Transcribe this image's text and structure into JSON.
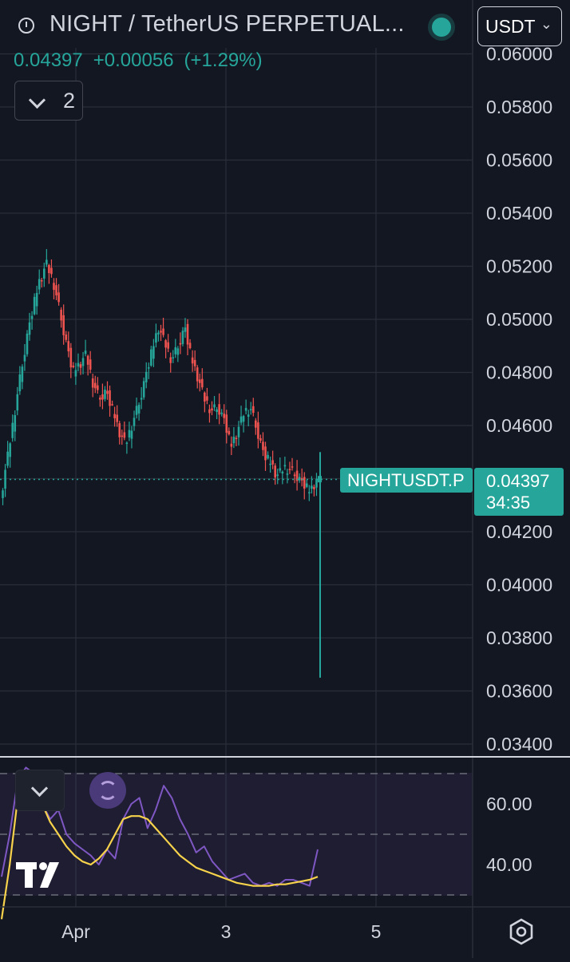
{
  "header": {
    "symbol_title": "NIGHT / TetherUS PERPETUAL...",
    "currency_button": "USDT",
    "price": "0.04397",
    "change": "+0.00056",
    "change_pct": "(+1.29%)",
    "indicator_count": "2"
  },
  "colors": {
    "bg": "#131722",
    "up": "#26a69a",
    "down": "#ef5350",
    "grid": "#2a2e39",
    "text": "#d1d4dc",
    "rsi": "#7e57c2",
    "rsi_ma": "#f7d24b"
  },
  "icons": [
    "clock-icon",
    "live-dot-icon",
    "chevron-down-icon",
    "sync-icon",
    "tradingview-logo-icon",
    "settings-icon"
  ],
  "chart_data": {
    "type": "candlestick",
    "title": "NIGHT / TetherUS PERPETUAL...",
    "price_axis": {
      "ticks": [
        "0.06000",
        "0.05800",
        "0.05600",
        "0.05400",
        "0.05200",
        "0.05000",
        "0.04800",
        "0.04600",
        "0.04400",
        "0.04200",
        "0.04000",
        "0.03800",
        "0.03600",
        "0.03400"
      ],
      "range": [
        0.0336,
        0.0602
      ]
    },
    "time_axis": {
      "ticks": [
        "Apr",
        "3",
        "5"
      ]
    },
    "last_price": {
      "symbol": "NIGHTUSDT.P",
      "value": "0.04397",
      "countdown": "34:35"
    },
    "price_path": [
      0.0432,
      0.0447,
      0.0462,
      0.0478,
      0.0493,
      0.0505,
      0.0515,
      0.0521,
      0.0514,
      0.0503,
      0.0491,
      0.048,
      0.0483,
      0.0487,
      0.0476,
      0.047,
      0.0473,
      0.0466,
      0.0458,
      0.0453,
      0.046,
      0.0468,
      0.0478,
      0.0488,
      0.0497,
      0.0491,
      0.0484,
      0.049,
      0.0497,
      0.0485,
      0.0478,
      0.047,
      0.0465,
      0.0467,
      0.0462,
      0.0452,
      0.0458,
      0.0465,
      0.0466,
      0.0458,
      0.0449,
      0.0446,
      0.0441,
      0.0444,
      0.0443,
      0.0441,
      0.0438,
      0.0435,
      0.04397
    ],
    "spike_low": 0.0365,
    "spike_high": 0.045,
    "rsi_panel": {
      "ticks": [
        "60.00",
        "40.00"
      ],
      "range": [
        25,
        75
      ],
      "band_levels": [
        70,
        50,
        30
      ],
      "rsi": [
        36,
        50,
        68,
        72,
        70,
        60,
        55,
        58,
        50,
        47,
        45,
        43,
        40,
        45,
        42,
        55,
        60,
        62,
        52,
        58,
        66,
        62,
        55,
        50,
        44,
        46,
        41,
        38,
        35,
        36,
        37,
        34,
        33,
        34,
        33,
        35,
        35,
        34,
        33,
        45
      ],
      "rsi_ma": [
        22,
        40,
        62,
        70,
        68,
        60,
        54,
        50,
        46,
        43,
        41,
        40,
        42,
        45,
        50,
        55,
        56,
        56,
        55,
        52,
        49,
        46,
        43,
        41,
        39,
        38,
        37,
        36,
        35,
        34,
        33.5,
        33,
        33,
        33,
        33.5,
        33.5,
        34,
        34.5,
        35,
        36
      ]
    }
  }
}
